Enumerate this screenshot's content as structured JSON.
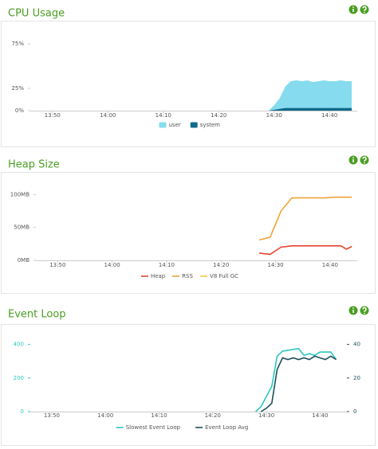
{
  "chart_data": [
    {
      "type": "area",
      "title": "CPU Usage",
      "stacked": true,
      "x": [
        "14:29",
        "14:30",
        "14:31",
        "14:32",
        "14:33",
        "14:34",
        "14:35",
        "14:36",
        "14:37",
        "14:38",
        "14:39",
        "14:40",
        "14:41",
        "14:42",
        "14:43",
        "14:44"
      ],
      "series": [
        {
          "name": "user",
          "color": "#86dcee",
          "values": [
            0,
            5,
            12,
            24,
            30,
            31,
            30,
            31,
            29,
            30,
            31,
            30,
            30,
            31,
            30,
            30
          ]
        },
        {
          "name": "system",
          "color": "#0e6a8c",
          "values": [
            0,
            1,
            2,
            3,
            3,
            3,
            3,
            3,
            3,
            3,
            3,
            3,
            3,
            3,
            3,
            3
          ]
        }
      ],
      "xlim": [
        "13:46",
        "14:45"
      ],
      "xticks": [
        "13:50",
        "14:00",
        "14:10",
        "14:20",
        "14:30",
        "14:40"
      ],
      "ylim": [
        0,
        100
      ],
      "yticks": [
        {
          "value": 0,
          "label": "0%"
        },
        {
          "value": 25,
          "label": "25%"
        },
        {
          "value": 75,
          "label": "75%"
        }
      ],
      "legend": "bottom"
    },
    {
      "type": "line",
      "title": "Heap Size",
      "x": [
        "14:27",
        "14:29",
        "14:31",
        "14:33",
        "14:35",
        "14:37",
        "14:39",
        "14:41",
        "14:42",
        "14:43",
        "14:44"
      ],
      "series": [
        {
          "name": "Heap",
          "color": "#e8452c",
          "values": [
            11,
            9,
            20,
            22,
            22,
            22,
            22,
            22,
            22,
            17,
            21
          ]
        },
        {
          "name": "RSS",
          "color": "#f2a23a",
          "values": [
            31,
            35,
            75,
            95,
            95,
            95,
            95,
            96,
            96,
            96,
            96
          ]
        },
        {
          "name": "V8 Full GC",
          "color": "#f5c842",
          "values": [
            null,
            null,
            null,
            null,
            null,
            null,
            null,
            null,
            null,
            null,
            null
          ]
        }
      ],
      "xlim": [
        "13:46",
        "14:45"
      ],
      "xticks": [
        "13:50",
        "14:00",
        "14:10",
        "14:20",
        "14:30",
        "14:40"
      ],
      "ylim": [
        0,
        115
      ],
      "yticks": [
        {
          "value": 0,
          "label": "0MB"
        },
        {
          "value": 50,
          "label": "50MB"
        },
        {
          "value": 100,
          "label": "100MB"
        }
      ],
      "legend": "bottom"
    },
    {
      "type": "line",
      "title": "Event Loop",
      "x": [
        "14:28",
        "14:29",
        "14:30",
        "14:31",
        "14:32",
        "14:33",
        "14:34",
        "14:35",
        "14:36",
        "14:37",
        "14:38",
        "14:39",
        "14:40",
        "14:41",
        "14:42",
        "14:43"
      ],
      "series": [
        {
          "name": "Slowest Event Loop",
          "color": "#2cc6c0",
          "values": [
            0,
            30,
            90,
            150,
            330,
            360,
            365,
            370,
            375,
            335,
            345,
            335,
            355,
            355,
            355,
            310
          ]
        },
        {
          "name": "Event Loop Avg",
          "color": "#1d4f5a",
          "axis": "y2",
          "values": [
            null,
            0,
            2,
            5,
            25,
            32,
            31,
            32,
            31,
            32,
            31,
            33,
            32,
            31,
            33,
            31
          ]
        }
      ],
      "xlim": [
        "13:46",
        "14:45"
      ],
      "xticks": [
        "13:50",
        "14:00",
        "14:10",
        "14:20",
        "14:30",
        "14:40"
      ],
      "ylim": [
        0,
        460
      ],
      "yticks": [
        0,
        200,
        400
      ],
      "y2lim": [
        0,
        46
      ],
      "y2ticks": [
        0,
        20,
        40
      ],
      "legend": "bottom"
    }
  ]
}
